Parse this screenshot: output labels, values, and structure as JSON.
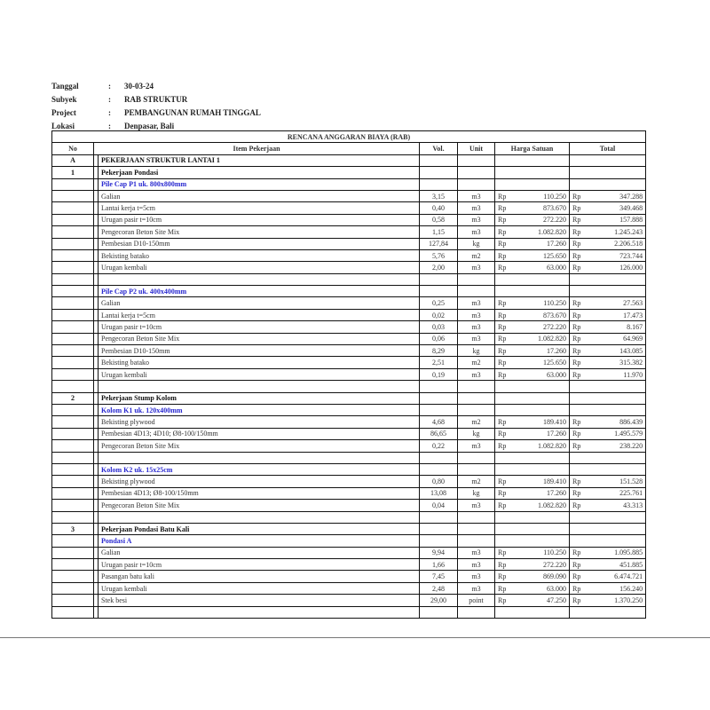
{
  "meta": [
    {
      "label": "Tanggal",
      "sep": ":",
      "value": "30-03-24"
    },
    {
      "label": "Subyek",
      "sep": ":",
      "value": "RAB STRUKTUR"
    },
    {
      "label": "Project",
      "sep": ":",
      "value": "PEMBANGUNAN RUMAH TINGGAL"
    },
    {
      "label": "Lokasi",
      "sep": ":",
      "value": "Denpasar, Bali"
    }
  ],
  "table": {
    "title": "RENCANA ANGGARAN BIAYA (RAB)",
    "headers": {
      "no": "No",
      "item": "Item Pekerjaan",
      "vol": "Vol.",
      "unit": "Unit",
      "harga": "Harga Satuan",
      "total": "Total"
    },
    "currency": "Rp",
    "rows": [
      {
        "type": "section",
        "no": "A",
        "item": "PEKERJAAN STRUKTUR LANTAI 1"
      },
      {
        "type": "section",
        "no": "1",
        "item": "Pekerjaan Pondasi"
      },
      {
        "type": "sub",
        "item": "Pile Cap P1 uk. 800x800mm"
      },
      {
        "type": "item",
        "item": "Galian",
        "vol": "3,15",
        "unit": "m3",
        "harga": "110.250",
        "total": "347.288"
      },
      {
        "type": "item",
        "item": "Lantai kerja t=5cm",
        "vol": "0,40",
        "unit": "m3",
        "harga": "873.670",
        "total": "349.468"
      },
      {
        "type": "item",
        "item": "Urugan pasir t=10cm",
        "vol": "0,58",
        "unit": "m3",
        "harga": "272.220",
        "total": "157.888"
      },
      {
        "type": "item",
        "item": "Pengecoran Beton Site Mix",
        "vol": "1,15",
        "unit": "m3",
        "harga": "1.082.820",
        "total": "1.245.243"
      },
      {
        "type": "item",
        "item": "Pembesian D10-150mm",
        "vol": "127,84",
        "unit": "kg",
        "harga": "17.260",
        "total": "2.206.518"
      },
      {
        "type": "item",
        "item": "Bekisting batako",
        "vol": "5,76",
        "unit": "m2",
        "harga": "125.650",
        "total": "723.744"
      },
      {
        "type": "item",
        "item": "Urugan kembali",
        "vol": "2,00",
        "unit": "m3",
        "harga": "63.000",
        "total": "126.000"
      },
      {
        "type": "blank"
      },
      {
        "type": "sub",
        "item": "Pile Cap P2 uk. 400x400mm"
      },
      {
        "type": "item",
        "item": "Galian",
        "vol": "0,25",
        "unit": "m3",
        "harga": "110.250",
        "total": "27.563"
      },
      {
        "type": "item",
        "item": "Lantai kerja t=5cm",
        "vol": "0,02",
        "unit": "m3",
        "harga": "873.670",
        "total": "17.473"
      },
      {
        "type": "item",
        "item": "Urugan pasir t=10cm",
        "vol": "0,03",
        "unit": "m3",
        "harga": "272.220",
        "total": "8.167"
      },
      {
        "type": "item",
        "item": "Pengecoran Beton Site Mix",
        "vol": "0,06",
        "unit": "m3",
        "harga": "1.082.820",
        "total": "64.969"
      },
      {
        "type": "item",
        "item": "Pembesian D10-150mm",
        "vol": "8,29",
        "unit": "kg",
        "harga": "17.260",
        "total": "143.085"
      },
      {
        "type": "item",
        "item": "Bekisting batako",
        "vol": "2,51",
        "unit": "m2",
        "harga": "125.650",
        "total": "315.382"
      },
      {
        "type": "item",
        "item": "Urugan kembali",
        "vol": "0,19",
        "unit": "m3",
        "harga": "63.000",
        "total": "11.970"
      },
      {
        "type": "blank"
      },
      {
        "type": "section",
        "no": "2",
        "item": "Pekerjaan Stump Kolom"
      },
      {
        "type": "sub",
        "item": "Kolom K1 uk. 120x400mm"
      },
      {
        "type": "item",
        "item": "Bekisting plywood",
        "vol": "4,68",
        "unit": "m2",
        "harga": "189.410",
        "total": "886.439"
      },
      {
        "type": "item",
        "item": "Pembesian 4D13; 4D10; Ø8-100/150mm",
        "vol": "86,65",
        "unit": "kg",
        "harga": "17.260",
        "total": "1.495.579"
      },
      {
        "type": "item",
        "item": "Pengecoran Beton Site Mix",
        "vol": "0,22",
        "unit": "m3",
        "harga": "1.082.820",
        "total": "238.220"
      },
      {
        "type": "blank"
      },
      {
        "type": "sub",
        "item": "Kolom K2 uk. 15x25cm"
      },
      {
        "type": "item",
        "item": "Bekisting plywood",
        "vol": "0,80",
        "unit": "m2",
        "harga": "189.410",
        "total": "151.528"
      },
      {
        "type": "item",
        "item": "Pembesian 4D13; Ø8-100/150mm",
        "vol": "13,08",
        "unit": "kg",
        "harga": "17.260",
        "total": "225.761"
      },
      {
        "type": "item",
        "item": "Pengecoran Beton Site Mix",
        "vol": "0,04",
        "unit": "m3",
        "harga": "1.082.820",
        "total": "43.313"
      },
      {
        "type": "blank"
      },
      {
        "type": "section",
        "no": "3",
        "item": "Pekerjaan Pondasi Batu Kali"
      },
      {
        "type": "sub",
        "item": "Pondasi A"
      },
      {
        "type": "item",
        "item": "Galian",
        "vol": "9,94",
        "unit": "m3",
        "harga": "110.250",
        "total": "1.095.885"
      },
      {
        "type": "item",
        "item": "Urugan pasir t=10cm",
        "vol": "1,66",
        "unit": "m3",
        "harga": "272.220",
        "total": "451.885"
      },
      {
        "type": "item",
        "item": "Pasangan batu kali",
        "vol": "7,45",
        "unit": "m3",
        "harga": "869.090",
        "total": "6.474.721"
      },
      {
        "type": "item",
        "item": "Urugan kembali",
        "vol": "2,48",
        "unit": "m3",
        "harga": "63.000",
        "total": "156.240"
      },
      {
        "type": "item",
        "item": "Stek besi",
        "vol": "29,00",
        "unit": "point",
        "harga": "47.250",
        "total": "1.370.250"
      },
      {
        "type": "blank"
      }
    ]
  }
}
